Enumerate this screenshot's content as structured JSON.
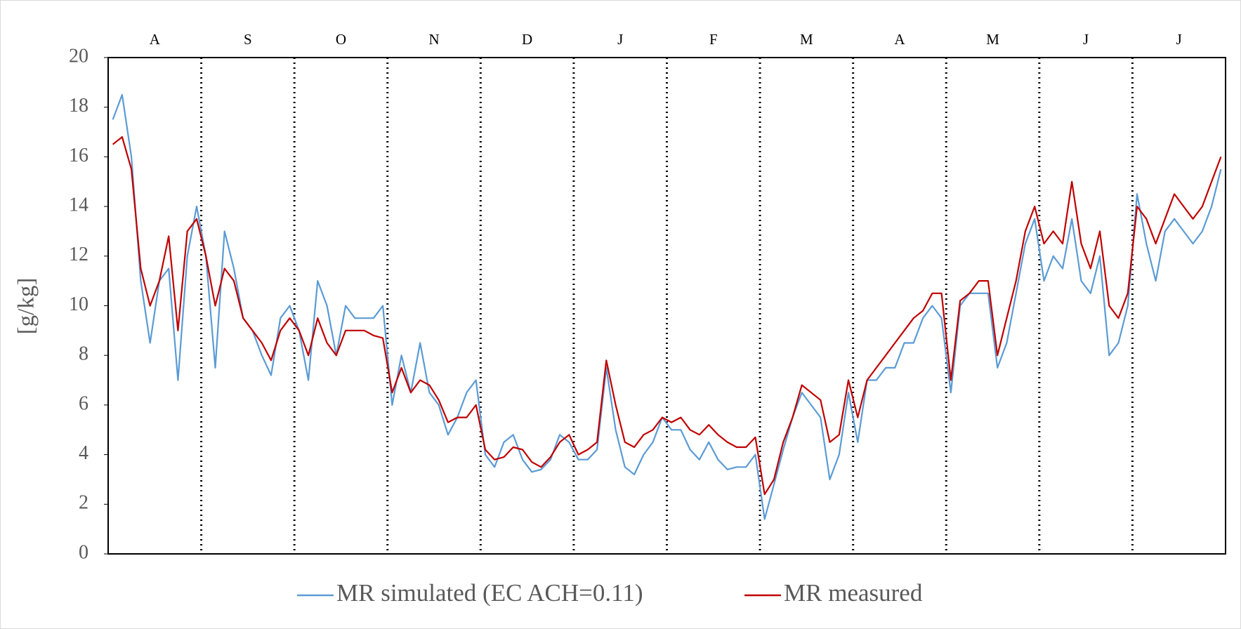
{
  "chart_data": {
    "type": "line",
    "y_label": "[g/kg]",
    "months": [
      "A",
      "S",
      "O",
      "N",
      "D",
      "J",
      "F",
      "M",
      "A",
      "M",
      "J",
      "J"
    ],
    "ylim": [
      0,
      20
    ],
    "yticks": [
      0,
      2,
      4,
      6,
      8,
      10,
      12,
      14,
      16,
      18,
      20
    ],
    "legend": "bottom",
    "series": [
      {
        "name": "MR simulated (EC ACH=0.11)",
        "color": "#5b9bd5",
        "values": [
          17.5,
          18.5,
          16,
          11,
          8.5,
          11,
          11.5,
          7,
          12,
          14,
          12,
          7.5,
          13,
          11.5,
          9.5,
          9,
          8,
          7.2,
          9.5,
          10,
          9,
          7,
          11,
          10,
          8,
          10,
          9.5,
          9.5,
          9.5,
          10,
          6,
          8,
          6.5,
          8.5,
          6.5,
          6,
          4.8,
          5.5,
          6.5,
          7,
          4,
          3.5,
          4.5,
          4.8,
          3.8,
          3.3,
          3.4,
          3.8,
          4.8,
          4.5,
          3.8,
          3.8,
          4.2,
          7.5,
          5,
          3.5,
          3.2,
          4,
          4.5,
          5.5,
          5,
          5,
          4.2,
          3.8,
          4.5,
          3.8,
          3.4,
          3.5,
          3.5,
          4,
          1.4,
          2.8,
          4.2,
          5.5,
          6.5,
          6,
          5.5,
          3,
          4,
          6.5,
          4.5,
          7,
          7,
          7.5,
          7.5,
          8.5,
          8.5,
          9.5,
          10,
          9.5,
          6.5,
          10,
          10.5,
          10.5,
          10.5,
          7.5,
          8.5,
          10.5,
          12.5,
          13.5,
          11,
          12,
          11.5,
          13.5,
          11,
          10.5,
          12,
          8,
          8.5,
          10,
          14.5,
          12.5,
          11,
          13,
          13.5,
          13,
          12.5,
          13,
          14,
          15.5
        ]
      },
      {
        "name": "MR measured",
        "color": "#c00000",
        "values": [
          16.5,
          16.8,
          15.5,
          11.5,
          10,
          11,
          12.8,
          9,
          13,
          13.5,
          12,
          10,
          11.5,
          11,
          9.5,
          9,
          8.5,
          7.8,
          9,
          9.5,
          9,
          8,
          9.5,
          8.5,
          8,
          9,
          9,
          9,
          8.8,
          8.7,
          6.5,
          7.5,
          6.5,
          7,
          6.8,
          6.2,
          5.3,
          5.5,
          5.5,
          6,
          4.2,
          3.8,
          3.9,
          4.3,
          4.2,
          3.7,
          3.5,
          3.9,
          4.5,
          4.8,
          4,
          4.2,
          4.5,
          7.8,
          6,
          4.5,
          4.3,
          4.8,
          5,
          5.5,
          5.3,
          5.5,
          5,
          4.8,
          5.2,
          4.8,
          4.5,
          4.3,
          4.3,
          4.7,
          2.4,
          3,
          4.5,
          5.5,
          6.8,
          6.5,
          6.2,
          4.5,
          4.8,
          7,
          5.5,
          7,
          7.5,
          8,
          8.5,
          9,
          9.5,
          9.8,
          10.5,
          10.5,
          7,
          10.2,
          10.5,
          11,
          11,
          8,
          9.5,
          11,
          13,
          14,
          12.5,
          13,
          12.5,
          15,
          12.5,
          11.5,
          13,
          10,
          9.5,
          10.5,
          14,
          13.5,
          12.5,
          13.5,
          14.5,
          14,
          13.5,
          14,
          15,
          16
        ]
      }
    ]
  }
}
